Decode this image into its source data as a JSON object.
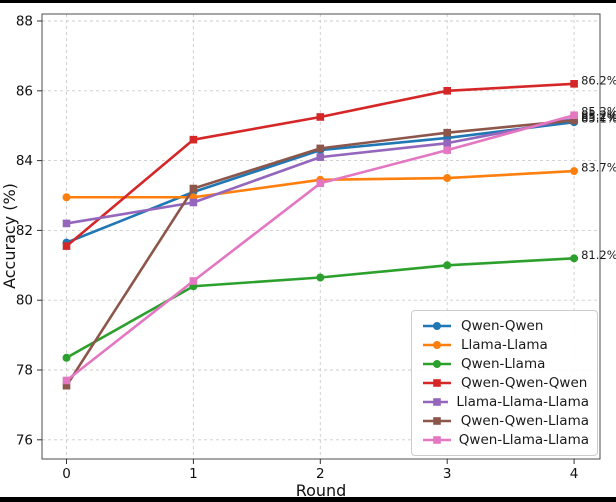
{
  "figure": {
    "background": "#ffffff",
    "border_color": "#000000",
    "grid_color": "#cccccc"
  },
  "chart_data": {
    "type": "line",
    "title": "",
    "xlabel": "Round",
    "ylabel": "Accuracy (%)",
    "x": [
      0,
      1,
      2,
      3,
      4
    ],
    "xtick_labels": [
      "0",
      "1",
      "2",
      "3",
      "4"
    ],
    "yticks": [
      76,
      78,
      80,
      82,
      84,
      86,
      88
    ],
    "ytick_labels": [
      "76",
      "78",
      "80",
      "82",
      "84",
      "86",
      "88"
    ],
    "ylim": [
      75.4,
      88.2
    ],
    "xlim": [
      -0.2,
      4.2
    ],
    "grid": true,
    "legend_position": "lower right",
    "series": [
      {
        "name": "Qwen-Qwen",
        "color": "#1f77b4",
        "marker": "circle",
        "values": [
          81.65,
          83.1,
          84.3,
          84.65,
          85.1
        ],
        "end_label": "85.1%"
      },
      {
        "name": "Llama-Llama",
        "color": "#ff7f0e",
        "marker": "circle",
        "values": [
          82.95,
          82.95,
          83.45,
          83.5,
          83.7
        ],
        "end_label": "83.7%"
      },
      {
        "name": "Qwen-Llama",
        "color": "#2ca02c",
        "marker": "circle",
        "values": [
          78.35,
          80.4,
          80.65,
          81.0,
          81.2
        ],
        "end_label": "81.2%"
      },
      {
        "name": "Qwen-Qwen-Qwen",
        "color": "#d62728",
        "marker": "square",
        "values": [
          81.55,
          84.6,
          85.25,
          86.0,
          86.2
        ],
        "end_label": "86.2%"
      },
      {
        "name": "Llama-Llama-Llama",
        "color": "#9467bd",
        "marker": "square",
        "values": [
          82.2,
          82.8,
          84.1,
          84.5,
          85.2
        ],
        "end_label": "85.2%"
      },
      {
        "name": "Qwen-Qwen-Llama",
        "color": "#8c564b",
        "marker": "square",
        "values": [
          77.55,
          83.2,
          84.35,
          84.8,
          85.15
        ],
        "end_label": "85.2%"
      },
      {
        "name": "Qwen-Llama-Llama",
        "color": "#e377c2",
        "marker": "square",
        "values": [
          77.7,
          80.55,
          83.35,
          84.3,
          85.3
        ],
        "end_label": "85.3%"
      }
    ]
  }
}
